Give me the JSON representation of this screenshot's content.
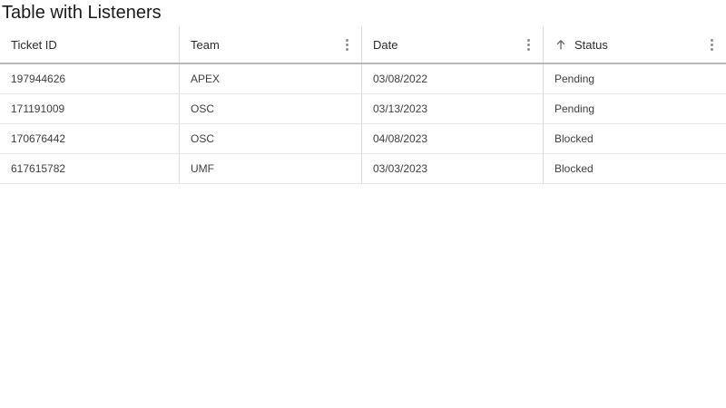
{
  "page": {
    "title": "Table with Listeners"
  },
  "table": {
    "columns": [
      {
        "id": "ticket-id",
        "label": "Ticket ID",
        "has_menu": false,
        "sort": null
      },
      {
        "id": "team",
        "label": "Team",
        "has_menu": true,
        "sort": null
      },
      {
        "id": "date",
        "label": "Date",
        "has_menu": true,
        "sort": null
      },
      {
        "id": "status",
        "label": "Status",
        "has_menu": true,
        "sort": "asc"
      }
    ],
    "rows": [
      [
        "197944626",
        "APEX",
        "03/08/2022",
        "Pending"
      ],
      [
        "171191009",
        "OSC",
        "03/13/2023",
        "Pending"
      ],
      [
        "170676442",
        "OSC",
        "04/08/2023",
        "Blocked"
      ],
      [
        "617615782",
        "UMF",
        "03/03/2023",
        "Blocked"
      ]
    ]
  },
  "icons": {
    "column_menu": "kebab-menu-icon",
    "sort_ascending": "arrow-up-icon"
  },
  "colors": {
    "background": "#ffffff",
    "title_text": "#1a1a1a",
    "header_text": "#2b2b2b",
    "cell_text": "#3e3e3e",
    "header_border": "#b9b9b9",
    "row_border": "#e7e7e7",
    "column_divider": "#dcdcdc",
    "icon_gray": "#8d8d8d",
    "sort_arrow": "#5f6368"
  }
}
